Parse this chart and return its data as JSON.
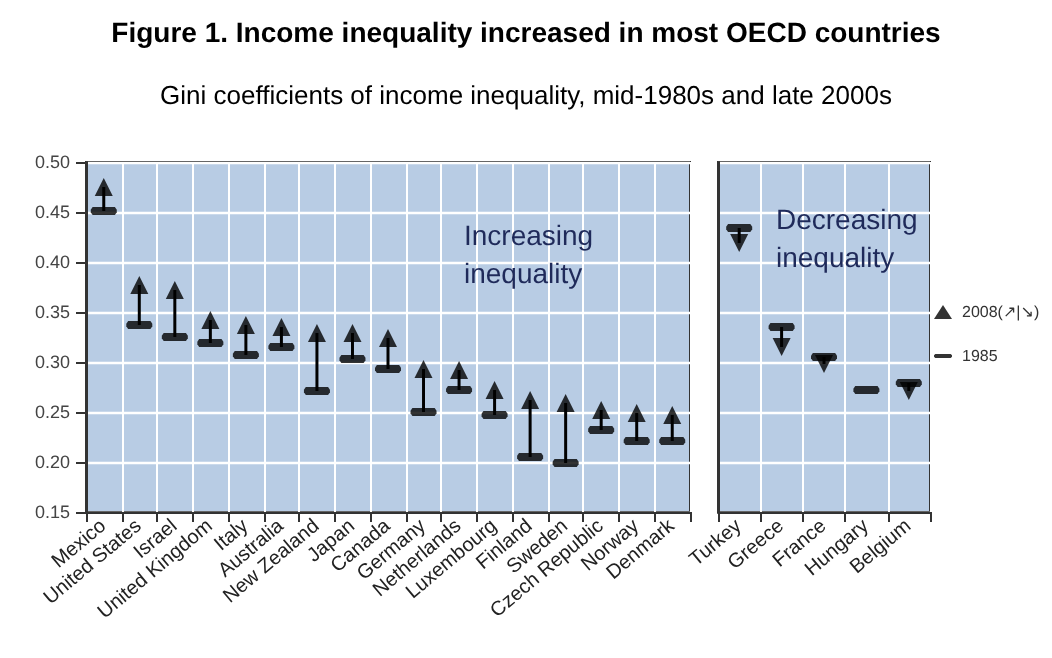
{
  "chart_data": [
    {
      "type": "scatter",
      "title": "Figure 1. Income inequality increased in most OECD countries",
      "subtitle": "Gini coefficients of income inequality, mid-1980s and late 2000s",
      "annotations": [
        "Increasing\ninequality"
      ],
      "categories": [
        "Mexico",
        "United States",
        "Israel",
        "United Kingdom",
        "Italy",
        "Australia",
        "New Zealand",
        "Japan",
        "Canada",
        "Germany",
        "Netherlands",
        "Luxembourg",
        "Finland",
        "Sweden",
        "Czech Republic",
        "Norway",
        "Denmark"
      ],
      "series": [
        {
          "color": "#000000",
          "marker": "triangle",
          "values": [
            0.475,
            0.377,
            0.372,
            0.342,
            0.337,
            0.335,
            0.329,
            0.329,
            0.324,
            0.293,
            0.292,
            0.272,
            0.262,
            0.259,
            0.252,
            0.249,
            0.247
          ]
        },
        {
          "color": "#000000",
          "values": [
            0.451,
            0.337,
            0.325,
            0.319,
            0.307,
            0.315,
            0.271,
            0.303,
            0.293,
            0.25,
            0.272,
            0.247,
            0.205,
            0.199,
            0.232,
            0.221,
            0.221
          ]
        }
      ],
      "ylim": [
        0.15,
        0.5
      ],
      "yticks": [
        {
          "value": 0.15,
          "label": "0.15"
        },
        {
          "value": 0.2,
          "label": "0.20"
        },
        {
          "value": 0.25,
          "label": "0.25"
        },
        {
          "value": 0.3,
          "label": "0.30"
        },
        {
          "value": 0.35,
          "label": "0.35"
        },
        {
          "value": 0.4,
          "label": "0.40"
        },
        {
          "value": 0.45,
          "label": "0.45"
        },
        {
          "value": 0.5,
          "label": "0.50"
        }
      ],
      "grid": true,
      "legend": false
    },
    {
      "type": "scatter",
      "annotations": [
        "Decreasing\ninequality"
      ],
      "categories": [
        "Turkey",
        "Greece",
        "France",
        "Hungary",
        "Belgium"
      ],
      "series": [
        {
          "name": "2008(↗|↘)",
          "color": "#000000",
          "marker": "triangle",
          "values": [
            0.419,
            0.315,
            0.298,
            null,
            0.271
          ]
        },
        {
          "name": "1985",
          "color": "#000000",
          "values": [
            0.434,
            0.335,
            0.305,
            0.272,
            0.279
          ]
        }
      ],
      "ylim": [
        0.15,
        0.5
      ],
      "yticks": [
        0.15,
        0.2,
        0.25,
        0.3,
        0.35,
        0.4,
        0.45,
        0.5
      ],
      "grid": true,
      "legend": "right",
      "tick_labels": "x"
    }
  ]
}
